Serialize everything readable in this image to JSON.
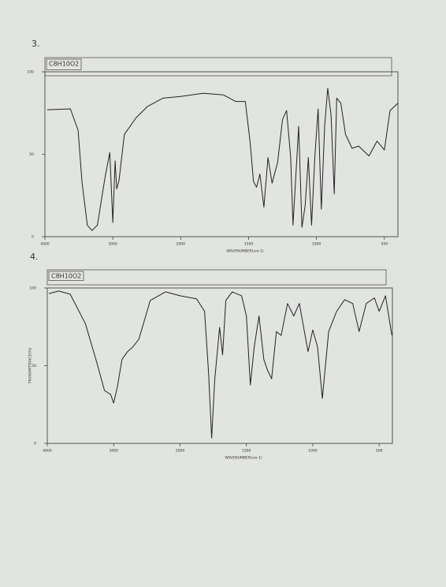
{
  "chart_data": [
    {
      "type": "line",
      "label": "3.",
      "title": "C8H10O2",
      "xlabel": "WAVENUMBER(cm-1)",
      "xlim": [
        4000,
        400
      ],
      "ylim": [
        0,
        100
      ],
      "x_scale_break": 2000,
      "xticks": [
        4000,
        3000,
        2000,
        1500,
        1000,
        500
      ],
      "yticks": [
        0,
        50,
        100
      ],
      "series": [
        {
          "color": "#222222",
          "x": [
            3966,
            3625,
            3511,
            3455,
            3375,
            3307,
            3227,
            3114,
            3045,
            3000,
            2966,
            2943,
            2909,
            2830,
            2659,
            2489,
            2261,
            2000,
            1833,
            1685,
            1595,
            1524,
            1488,
            1464,
            1441,
            1417,
            1387,
            1357,
            1327,
            1286,
            1250,
            1220,
            1190,
            1173,
            1149,
            1131,
            1107,
            1083,
            1060,
            1036,
            1012,
            988,
            964,
            940,
            917,
            893,
            869,
            851,
            821,
            786,
            738,
            690,
            613,
            554,
            500,
            458,
            400
          ],
          "values": [
            77,
            77.5,
            64.6,
            33.5,
            7,
            3.8,
            7,
            36,
            51,
            8.6,
            46,
            29,
            34,
            62,
            72,
            79,
            84,
            85,
            87,
            86,
            82,
            82,
            57,
            33.5,
            30,
            38,
            18,
            48,
            32.5,
            45,
            71,
            76.5,
            48,
            7,
            40.6,
            67,
            5.7,
            19,
            48,
            7,
            48,
            77.5,
            16.7,
            67,
            90,
            74,
            26,
            84,
            81,
            62,
            53.6,
            55,
            49,
            58,
            52.6,
            76.5,
            81
          ]
        }
      ]
    },
    {
      "type": "line",
      "label": "4.",
      "title": "C8H10O2",
      "xlabel": "WAVENUMBER(cm-1)",
      "ylabel": "TRANSMITTANCE(%)",
      "xlim": [
        4000,
        400
      ],
      "ylim": [
        0,
        100
      ],
      "x_scale_break": 2000,
      "xticks": [
        4000,
        3000,
        2000,
        1500,
        1000,
        500
      ],
      "yticks": [
        0,
        50,
        100
      ],
      "series": [
        {
          "color": "#222222",
          "x": [
            3977,
            3828,
            3655,
            3425,
            3253,
            3138,
            3046,
            3000,
            2943,
            2874,
            2793,
            2713,
            2621,
            2448,
            2218,
            2000,
            1875,
            1815,
            1786,
            1762,
            1738,
            1702,
            1679,
            1655,
            1607,
            1536,
            1500,
            1470,
            1441,
            1405,
            1369,
            1340,
            1310,
            1274,
            1238,
            1190,
            1143,
            1101,
            1036,
            1000,
            964,
            928,
            880,
            820,
            760,
            699,
            651,
            597,
            536,
            500,
            452,
            404
          ],
          "values": [
            96.4,
            98,
            96,
            77,
            52,
            34,
            31.5,
            26,
            36.5,
            54,
            59,
            62,
            67,
            92,
            97.5,
            95,
            93,
            85,
            47,
            3.5,
            41.6,
            74.6,
            57,
            92,
            97.5,
            95,
            82,
            37.6,
            62,
            82,
            54,
            47,
            41.6,
            72,
            69.5,
            90,
            82,
            90,
            59,
            73,
            62,
            29,
            72,
            85,
            92.5,
            90,
            72,
            90,
            93.6,
            85,
            95,
            69.5
          ]
        }
      ]
    }
  ]
}
